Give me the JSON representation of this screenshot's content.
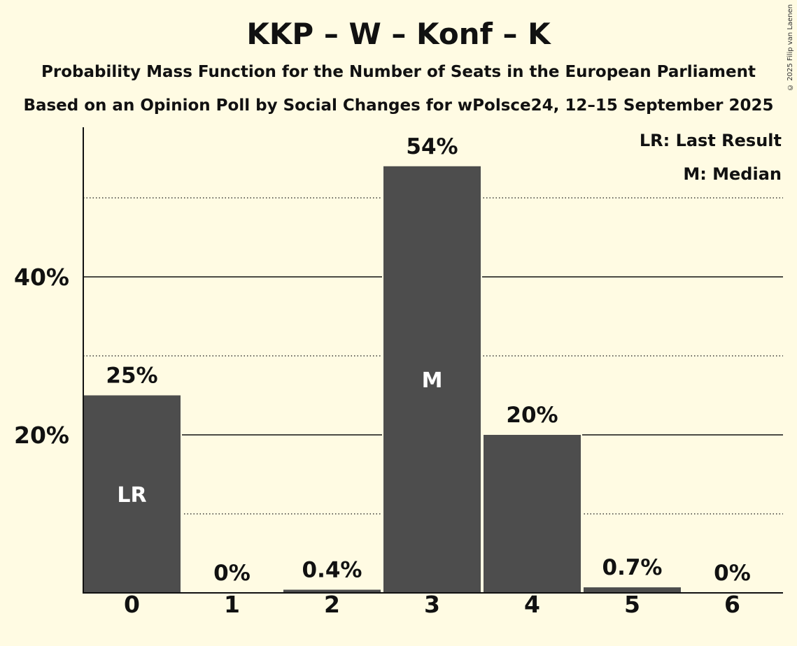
{
  "chart_data": {
    "type": "bar",
    "title": "KKP – W – Konf – K",
    "subtitle": "Probability Mass Function for the Number of Seats in the European Parliament",
    "subtitle2": "Based on an Opinion Poll by Social Changes for wPolsce24, 12–15 September 2025",
    "copyright": "© 2025 Filip van Laenen",
    "categories": [
      "0",
      "1",
      "2",
      "3",
      "4",
      "5",
      "6"
    ],
    "values": [
      25,
      0,
      0.4,
      54,
      20,
      0.7,
      0
    ],
    "value_labels": [
      "25%",
      "0%",
      "0.4%",
      "54%",
      "20%",
      "0.7%",
      "0%"
    ],
    "bar_markers": [
      "LR",
      "",
      "",
      "M",
      "",
      "",
      ""
    ],
    "yticks": [
      {
        "value": 20,
        "label": "20%"
      },
      {
        "value": 40,
        "label": "40%"
      }
    ],
    "minor_gridlines": [
      10,
      30,
      50
    ],
    "ylim": [
      0,
      58.7
    ],
    "legend": [
      "LR: Last Result",
      "M: Median"
    ],
    "legend_position": "top-right",
    "colors": {
      "bar": "#4d4d4d",
      "background": "#fffbe3",
      "axis": "#111111",
      "marker_text": "#ffffff"
    }
  }
}
